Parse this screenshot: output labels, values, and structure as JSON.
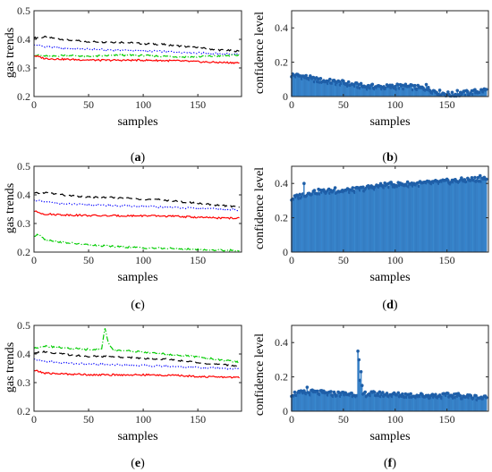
{
  "colors": {
    "axis": "#262626",
    "series_black": "#000000",
    "series_blue": "#0000ff",
    "series_green": "#00cc00",
    "series_red": "#ff0000",
    "bar_fill": "#3d8fd6",
    "bar_edge": "#1f5fa8"
  },
  "panels": [
    {
      "caption": {
        "open": "(",
        "letter": "a",
        "close": ")"
      },
      "chart_data": {
        "type": "line",
        "ylabel": "gas trends",
        "xlabel": "samples",
        "xlim": [
          0,
          190
        ],
        "ylim": [
          0.2,
          0.5
        ],
        "xticks": [
          0,
          50,
          100,
          150
        ],
        "yticks": [
          0.2,
          0.3,
          0.4,
          0.5
        ],
        "series": [
          {
            "style": "dashed",
            "color": "#000000",
            "anchors": [
              [
                0,
                0.405
              ],
              [
                10,
                0.408
              ],
              [
                30,
                0.398
              ],
              [
                50,
                0.392
              ],
              [
                80,
                0.39
              ],
              [
                100,
                0.385
              ],
              [
                120,
                0.382
              ],
              [
                150,
                0.37
              ],
              [
                170,
                0.363
              ],
              [
                190,
                0.358
              ]
            ]
          },
          {
            "style": "dotted",
            "color": "#0000ff",
            "anchors": [
              [
                0,
                0.381
              ],
              [
                10,
                0.375
              ],
              [
                30,
                0.368
              ],
              [
                60,
                0.364
              ],
              [
                100,
                0.36
              ],
              [
                130,
                0.356
              ],
              [
                160,
                0.351
              ],
              [
                190,
                0.347
              ]
            ]
          },
          {
            "style": "dashdot",
            "color": "#00cc00",
            "anchors": [
              [
                0,
                0.345
              ],
              [
                15,
                0.34
              ],
              [
                30,
                0.345
              ],
              [
                50,
                0.34
              ],
              [
                80,
                0.345
              ],
              [
                110,
                0.342
              ],
              [
                140,
                0.338
              ],
              [
                170,
                0.342
              ],
              [
                190,
                0.345
              ]
            ]
          },
          {
            "style": "solid",
            "color": "#ff0000",
            "anchors": [
              [
                0,
                0.343
              ],
              [
                5,
                0.338
              ],
              [
                10,
                0.333
              ],
              [
                30,
                0.33
              ],
              [
                60,
                0.327
              ],
              [
                100,
                0.327
              ],
              [
                130,
                0.325
              ],
              [
                160,
                0.32
              ],
              [
                190,
                0.318
              ]
            ]
          }
        ]
      }
    },
    {
      "caption": {
        "open": "(",
        "letter": "b",
        "close": ")"
      },
      "chart_data": {
        "type": "bar",
        "ylabel": "confidence level",
        "xlabel": "samples",
        "xlim": [
          0,
          190
        ],
        "ylim": [
          0,
          0.5
        ],
        "xticks": [
          0,
          50,
          100,
          150
        ],
        "yticks": [
          0,
          0.2,
          0.4
        ],
        "n": 190,
        "anchors": [
          [
            0,
            0.125
          ],
          [
            10,
            0.118
          ],
          [
            25,
            0.095
          ],
          [
            50,
            0.078
          ],
          [
            70,
            0.058
          ],
          [
            90,
            0.055
          ],
          [
            110,
            0.058
          ],
          [
            130,
            0.045
          ],
          [
            145,
            0.02
          ],
          [
            155,
            0.01
          ],
          [
            175,
            0.025
          ],
          [
            190,
            0.04
          ]
        ],
        "spikes": [
          [
            5,
            0.13
          ],
          [
            20,
            0.105
          ],
          [
            102,
            0.072
          ],
          [
            130,
            0.07
          ],
          [
            160,
            0.035
          ]
        ]
      }
    },
    {
      "caption": {
        "open": "(",
        "letter": "c",
        "close": ")"
      },
      "chart_data": {
        "type": "line",
        "ylabel": "gas trends",
        "xlabel": "samples",
        "xlim": [
          0,
          190
        ],
        "ylim": [
          0.2,
          0.5
        ],
        "xticks": [
          0,
          50,
          100,
          150
        ],
        "yticks": [
          0.2,
          0.3,
          0.4,
          0.5
        ],
        "series": [
          {
            "style": "dashed",
            "color": "#000000",
            "anchors": [
              [
                0,
                0.405
              ],
              [
                10,
                0.408
              ],
              [
                30,
                0.398
              ],
              [
                50,
                0.392
              ],
              [
                80,
                0.39
              ],
              [
                100,
                0.385
              ],
              [
                120,
                0.382
              ],
              [
                150,
                0.37
              ],
              [
                170,
                0.363
              ],
              [
                190,
                0.358
              ]
            ]
          },
          {
            "style": "dotted",
            "color": "#0000ff",
            "anchors": [
              [
                0,
                0.381
              ],
              [
                10,
                0.375
              ],
              [
                30,
                0.368
              ],
              [
                60,
                0.364
              ],
              [
                100,
                0.36
              ],
              [
                130,
                0.356
              ],
              [
                160,
                0.351
              ],
              [
                190,
                0.347
              ]
            ]
          },
          {
            "style": "dashdot",
            "color": "#00cc00",
            "anchors": [
              [
                0,
                0.255
              ],
              [
                5,
                0.262
              ],
              [
                10,
                0.245
              ],
              [
                25,
                0.235
              ],
              [
                50,
                0.225
              ],
              [
                80,
                0.218
              ],
              [
                100,
                0.215
              ],
              [
                130,
                0.212
              ],
              [
                160,
                0.207
              ],
              [
                190,
                0.206
              ]
            ]
          },
          {
            "style": "solid",
            "color": "#ff0000",
            "anchors": [
              [
                0,
                0.343
              ],
              [
                5,
                0.338
              ],
              [
                10,
                0.333
              ],
              [
                30,
                0.33
              ],
              [
                60,
                0.327
              ],
              [
                100,
                0.327
              ],
              [
                130,
                0.325
              ],
              [
                160,
                0.32
              ],
              [
                190,
                0.318
              ]
            ]
          }
        ]
      }
    },
    {
      "caption": {
        "open": "(",
        "letter": "d",
        "close": ")"
      },
      "chart_data": {
        "type": "bar",
        "ylabel": "confidence level",
        "xlabel": "samples",
        "xlim": [
          0,
          190
        ],
        "ylim": [
          0,
          0.5
        ],
        "xticks": [
          0,
          50,
          100,
          150
        ],
        "yticks": [
          0,
          0.2,
          0.4
        ],
        "n": 190,
        "anchors": [
          [
            0,
            0.31
          ],
          [
            10,
            0.33
          ],
          [
            20,
            0.35
          ],
          [
            40,
            0.355
          ],
          [
            60,
            0.36
          ],
          [
            75,
            0.375
          ],
          [
            90,
            0.39
          ],
          [
            110,
            0.395
          ],
          [
            130,
            0.4
          ],
          [
            150,
            0.41
          ],
          [
            170,
            0.42
          ],
          [
            190,
            0.43
          ]
        ],
        "spikes": [
          [
            12,
            0.4
          ],
          [
            42,
            0.375
          ],
          [
            182,
            0.445
          ]
        ]
      }
    },
    {
      "caption": {
        "open": "(",
        "letter": "e",
        "close": ")"
      },
      "chart_data": {
        "type": "line",
        "ylabel": "gas trends",
        "xlabel": "samples",
        "xlim": [
          0,
          190
        ],
        "ylim": [
          0.2,
          0.5
        ],
        "xticks": [
          0,
          50,
          100,
          150
        ],
        "yticks": [
          0.2,
          0.3,
          0.4,
          0.5
        ],
        "series": [
          {
            "style": "dashed",
            "color": "#000000",
            "anchors": [
              [
                0,
                0.405
              ],
              [
                10,
                0.408
              ],
              [
                30,
                0.398
              ],
              [
                50,
                0.392
              ],
              [
                80,
                0.39
              ],
              [
                100,
                0.385
              ],
              [
                120,
                0.382
              ],
              [
                150,
                0.37
              ],
              [
                170,
                0.363
              ],
              [
                190,
                0.358
              ]
            ]
          },
          {
            "style": "dotted",
            "color": "#0000ff",
            "anchors": [
              [
                0,
                0.381
              ],
              [
                10,
                0.375
              ],
              [
                30,
                0.368
              ],
              [
                60,
                0.364
              ],
              [
                100,
                0.36
              ],
              [
                130,
                0.356
              ],
              [
                160,
                0.351
              ],
              [
                190,
                0.347
              ]
            ]
          },
          {
            "style": "dashdot",
            "color": "#00cc00",
            "anchors": [
              [
                0,
                0.42
              ],
              [
                10,
                0.428
              ],
              [
                30,
                0.42
              ],
              [
                55,
                0.415
              ],
              [
                62,
                0.42
              ],
              [
                65,
                0.49
              ],
              [
                68,
                0.44
              ],
              [
                72,
                0.415
              ],
              [
                90,
                0.41
              ],
              [
                120,
                0.4
              ],
              [
                150,
                0.39
              ],
              [
                170,
                0.38
              ],
              [
                190,
                0.37
              ]
            ]
          },
          {
            "style": "solid",
            "color": "#ff0000",
            "anchors": [
              [
                0,
                0.343
              ],
              [
                5,
                0.338
              ],
              [
                10,
                0.333
              ],
              [
                30,
                0.33
              ],
              [
                60,
                0.327
              ],
              [
                100,
                0.327
              ],
              [
                130,
                0.325
              ],
              [
                160,
                0.32
              ],
              [
                190,
                0.318
              ]
            ]
          }
        ]
      }
    },
    {
      "caption": {
        "open": "(",
        "letter": "f",
        "close": ")"
      },
      "chart_data": {
        "type": "bar",
        "ylabel": "confidence level",
        "xlabel": "samples",
        "xlim": [
          0,
          190
        ],
        "ylim": [
          0,
          0.5
        ],
        "xticks": [
          0,
          50,
          100,
          150
        ],
        "yticks": [
          0,
          0.2,
          0.4
        ],
        "n": 190,
        "anchors": [
          [
            0,
            0.1
          ],
          [
            20,
            0.11
          ],
          [
            40,
            0.1
          ],
          [
            60,
            0.1
          ],
          [
            80,
            0.1
          ],
          [
            100,
            0.095
          ],
          [
            130,
            0.09
          ],
          [
            160,
            0.09
          ],
          [
            190,
            0.075
          ]
        ],
        "spikes": [
          [
            64,
            0.35
          ],
          [
            65,
            0.3
          ],
          [
            66,
            0.18
          ],
          [
            67,
            0.23
          ],
          [
            68,
            0.15
          ],
          [
            15,
            0.14
          ]
        ]
      }
    }
  ]
}
